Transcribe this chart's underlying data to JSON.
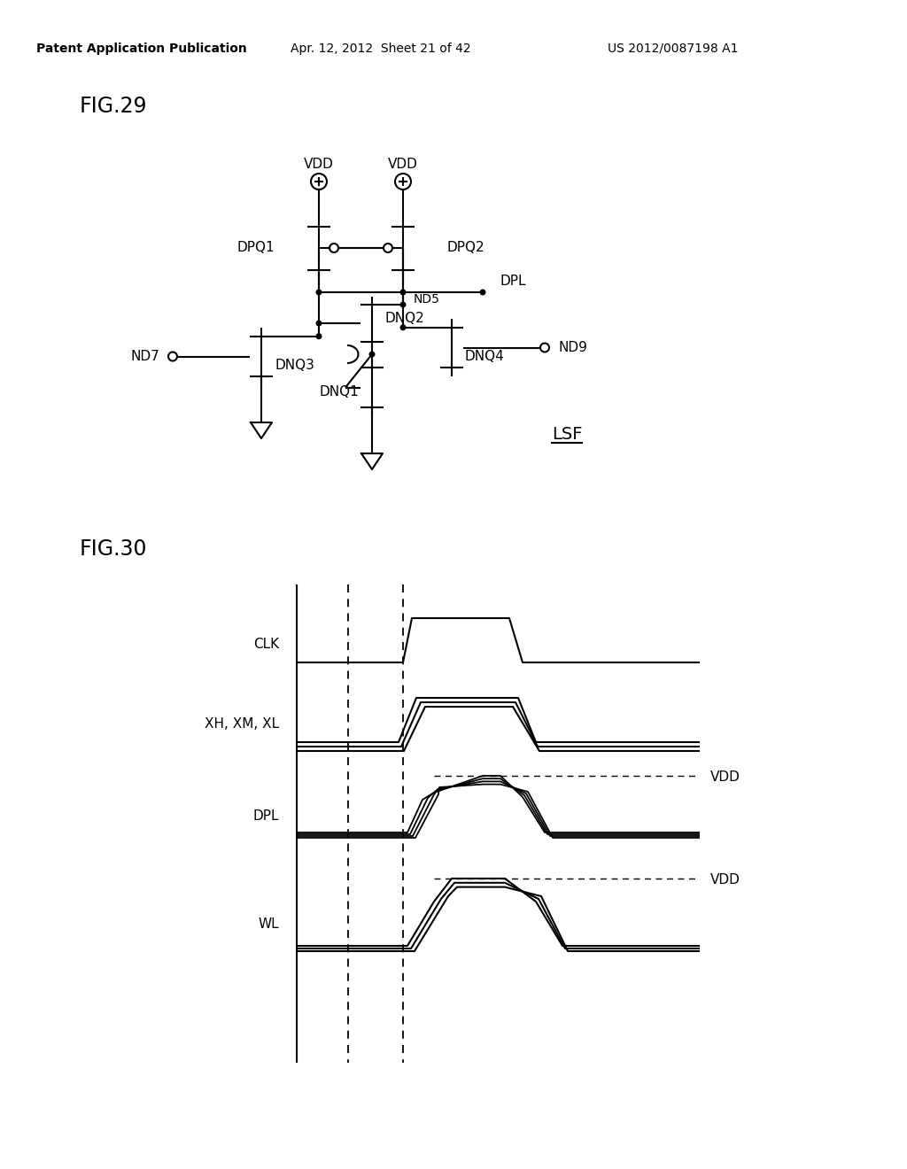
{
  "bg_color": "#ffffff",
  "header_left": "Patent Application Publication",
  "header_mid": "Apr. 12, 2012  Sheet 21 of 42",
  "header_right": "US 2012/0087198 A1",
  "fig29_label": "FIG.29",
  "fig30_label": "FIG.30",
  "lsf_label": "LSF",
  "clk_label": "CLK",
  "xhxmxl_label": "XH, XM, XL",
  "dpl_label": "DPL",
  "wl_label": "WL",
  "vdd_label": "VDD"
}
